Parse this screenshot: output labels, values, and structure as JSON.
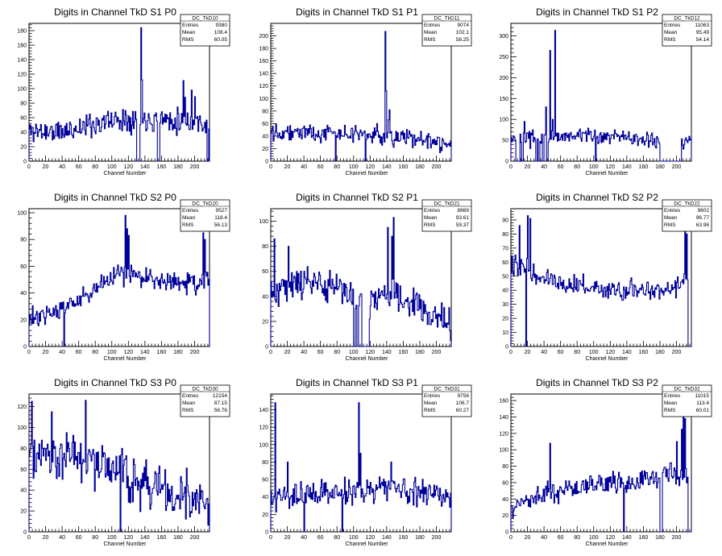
{
  "chart_data": [
    {
      "type": "histogram",
      "title": "Digits in Channel TkD S1 P0",
      "xlabel": "Channel Number",
      "xlim": [
        0,
        218
      ],
      "ylim": [
        0,
        190
      ],
      "xticks": [
        0,
        20,
        40,
        60,
        80,
        100,
        120,
        140,
        160,
        180,
        200
      ],
      "yticks": [
        0,
        20,
        40,
        60,
        80,
        100,
        120,
        140,
        160,
        180
      ],
      "stats": {
        "name": "DC_TkD10",
        "entries": "9380",
        "mean": "108.4",
        "rms": "60.05"
      },
      "spikes": [
        [
          135,
          184
        ],
        [
          136,
          112
        ],
        [
          186,
          111
        ],
        [
          188,
          88
        ],
        [
          196,
          98
        ],
        [
          200,
          89
        ]
      ],
      "zero_bins": [
        130,
        131,
        132,
        133,
        155,
        156,
        157,
        215,
        216
      ],
      "profile": [
        [
          0,
          42
        ],
        [
          40,
          40
        ],
        [
          80,
          52
        ],
        [
          120,
          60
        ],
        [
          160,
          58
        ],
        [
          200,
          55
        ],
        [
          218,
          50
        ]
      ],
      "noise": 12,
      "seed": 11
    },
    {
      "type": "histogram",
      "title": "Digits in Channel TkD S1 P1",
      "xlabel": "Channel Number",
      "xlim": [
        0,
        218
      ],
      "ylim": [
        0,
        220
      ],
      "xticks": [
        0,
        20,
        40,
        60,
        80,
        100,
        120,
        140,
        160,
        180,
        200
      ],
      "yticks": [
        0,
        20,
        40,
        60,
        80,
        100,
        120,
        140,
        160,
        180,
        200
      ],
      "stats": {
        "name": "DC_TkD11",
        "entries": "9074",
        "mean": "102.1",
        "rms": "58.25"
      },
      "spikes": [
        [
          138,
          207
        ],
        [
          139,
          112
        ],
        [
          143,
          82
        ],
        [
          142,
          66
        ]
      ],
      "zero_bins": [
        78,
        114
      ],
      "profile": [
        [
          0,
          50
        ],
        [
          40,
          46
        ],
        [
          80,
          44
        ],
        [
          120,
          42
        ],
        [
          160,
          38
        ],
        [
          200,
          30
        ],
        [
          218,
          22
        ]
      ],
      "noise": 10,
      "seed": 22
    },
    {
      "type": "histogram",
      "title": "Digits in Channel TkD S1 P2",
      "xlabel": "Channel Number",
      "xlim": [
        0,
        218
      ],
      "ylim": [
        0,
        330
      ],
      "xticks": [
        0,
        20,
        40,
        60,
        80,
        100,
        120,
        140,
        160,
        180,
        200
      ],
      "yticks": [
        0,
        50,
        100,
        150,
        200,
        250,
        300
      ],
      "stats": {
        "name": "DC_TkD12",
        "entries": "11063",
        "mean": "95.49",
        "rms": "54.14"
      },
      "spikes": [
        [
          47,
          265
        ],
        [
          53,
          313
        ],
        [
          50,
          100
        ],
        [
          42,
          130
        ],
        [
          26,
          75
        ],
        [
          16,
          95
        ]
      ],
      "zero_bins": [
        6,
        7,
        8,
        9,
        10,
        13,
        14,
        30,
        31,
        33,
        34,
        38,
        39,
        43,
        44,
        102,
        180,
        181,
        182,
        183,
        184,
        185,
        186,
        187,
        188,
        189,
        190,
        191,
        192,
        193,
        194,
        195,
        196,
        197,
        198,
        199,
        200,
        201,
        202,
        203,
        204,
        205
      ],
      "profile": [
        [
          0,
          50
        ],
        [
          40,
          55
        ],
        [
          80,
          62
        ],
        [
          120,
          58
        ],
        [
          160,
          50
        ],
        [
          200,
          40
        ],
        [
          218,
          50
        ]
      ],
      "noise": 12,
      "seed": 33
    },
    {
      "type": "histogram",
      "title": "Digits in Channel TkD S2 P0",
      "xlabel": "Channel Number",
      "xlim": [
        0,
        218
      ],
      "ylim": [
        0,
        103
      ],
      "xticks": [
        0,
        20,
        40,
        60,
        80,
        100,
        120,
        140,
        160,
        180,
        200
      ],
      "yticks": [
        0,
        20,
        40,
        60,
        80,
        100
      ],
      "stats": {
        "name": "DC_TkD20",
        "entries": "9527",
        "mean": "118.4",
        "rms": "56.13"
      },
      "spikes": [
        [
          116,
          98
        ],
        [
          118,
          88
        ],
        [
          120,
          83
        ],
        [
          210,
          85
        ],
        [
          212,
          80
        ]
      ],
      "zero_bins": [
        42
      ],
      "profile": [
        [
          0,
          20
        ],
        [
          40,
          28
        ],
        [
          80,
          42
        ],
        [
          110,
          55
        ],
        [
          140,
          52
        ],
        [
          180,
          48
        ],
        [
          218,
          50
        ]
      ],
      "noise": 6,
      "seed": 44
    },
    {
      "type": "histogram",
      "title": "Digits in Channel TkD S2 P1",
      "xlabel": "Channel Number",
      "xlim": [
        0,
        218
      ],
      "ylim": [
        0,
        110
      ],
      "xticks": [
        0,
        20,
        40,
        60,
        80,
        100,
        120,
        140,
        160,
        180,
        200
      ],
      "yticks": [
        0,
        20,
        40,
        60,
        80,
        100
      ],
      "stats": {
        "name": "DC_TkD21",
        "entries": "8869",
        "mean": "93.61",
        "rms": "59.37"
      },
      "spikes": [
        [
          148,
          103
        ],
        [
          146,
          88
        ],
        [
          141,
          95
        ],
        [
          4,
          86
        ],
        [
          21,
          80
        ]
      ],
      "zero_bins": [
        100,
        101,
        104,
        105,
        110,
        111,
        112,
        113,
        114,
        115,
        116,
        117,
        118
      ],
      "profile": [
        [
          0,
          45
        ],
        [
          40,
          52
        ],
        [
          80,
          48
        ],
        [
          100,
          40
        ],
        [
          120,
          38
        ],
        [
          150,
          42
        ],
        [
          180,
          30
        ],
        [
          218,
          18
        ]
      ],
      "noise": 9,
      "seed": 55
    },
    {
      "type": "histogram",
      "title": "Digits in Channel TkD S2 P2",
      "xlabel": "Channel Number",
      "xlim": [
        0,
        218
      ],
      "ylim": [
        0,
        98
      ],
      "xticks": [
        0,
        20,
        40,
        60,
        80,
        100,
        120,
        140,
        160,
        180,
        200
      ],
      "yticks": [
        0,
        10,
        20,
        30,
        40,
        50,
        60,
        70,
        80,
        90
      ],
      "stats": {
        "name": "DC_TkD22",
        "entries": "9602",
        "mean": "96.77",
        "rms": "63.96"
      },
      "spikes": [
        [
          10,
          86
        ],
        [
          20,
          93
        ],
        [
          23,
          91
        ],
        [
          5,
          65
        ],
        [
          210,
          85
        ],
        [
          212,
          80
        ]
      ],
      "zero_bins": [
        18,
        214,
        215,
        216,
        217
      ],
      "profile": [
        [
          0,
          60
        ],
        [
          30,
          52
        ],
        [
          60,
          45
        ],
        [
          100,
          42
        ],
        [
          140,
          40
        ],
        [
          180,
          38
        ],
        [
          205,
          45
        ],
        [
          218,
          50
        ]
      ],
      "noise": 5,
      "seed": 66
    },
    {
      "type": "histogram",
      "title": "Digits in Channel TkD S3 P0",
      "xlabel": "Channel Number",
      "xlim": [
        0,
        218
      ],
      "ylim": [
        0,
        132
      ],
      "xticks": [
        0,
        20,
        40,
        60,
        80,
        100,
        120,
        140,
        160,
        180,
        200
      ],
      "yticks": [
        0,
        20,
        40,
        60,
        80,
        100,
        120
      ],
      "stats": {
        "name": "DC_TkD30",
        "entries": "12154",
        "mean": "87.15",
        "rms": "56.76"
      },
      "spikes": [
        [
          3,
          125
        ],
        [
          27,
          115
        ],
        [
          68,
          126
        ],
        [
          45,
          95
        ]
      ],
      "zero_bins": [
        110
      ],
      "profile": [
        [
          0,
          80
        ],
        [
          30,
          75
        ],
        [
          60,
          70
        ],
        [
          100,
          60
        ],
        [
          140,
          45
        ],
        [
          180,
          35
        ],
        [
          218,
          25
        ]
      ],
      "noise": 16,
      "seed": 77
    },
    {
      "type": "histogram",
      "title": "Digits in Channel TkD S3 P1",
      "xlabel": "Channel Number",
      "xlim": [
        0,
        218
      ],
      "ylim": [
        0,
        158
      ],
      "xticks": [
        0,
        20,
        40,
        60,
        80,
        100,
        120,
        140,
        160,
        180,
        200
      ],
      "yticks": [
        0,
        20,
        40,
        60,
        80,
        100,
        120,
        140
      ],
      "stats": {
        "name": "DC_TkD31",
        "entries": "9756",
        "mean": "106.7",
        "rms": "60.27"
      },
      "spikes": [
        [
          5,
          148
        ],
        [
          106,
          148
        ],
        [
          108,
          90
        ],
        [
          20,
          80
        ],
        [
          145,
          80
        ]
      ],
      "zero_bins": [
        40,
        86
      ],
      "profile": [
        [
          0,
          40
        ],
        [
          40,
          42
        ],
        [
          80,
          45
        ],
        [
          120,
          50
        ],
        [
          160,
          48
        ],
        [
          200,
          45
        ],
        [
          218,
          35
        ]
      ],
      "noise": 11,
      "seed": 88
    },
    {
      "type": "histogram",
      "title": "Digits in Channel TkD S3 P2",
      "xlabel": "Channel Number",
      "xlim": [
        0,
        218
      ],
      "ylim": [
        0,
        168
      ],
      "xticks": [
        0,
        20,
        40,
        60,
        80,
        100,
        120,
        140,
        160,
        180,
        200
      ],
      "yticks": [
        0,
        20,
        40,
        60,
        80,
        100,
        120,
        140,
        160
      ],
      "stats": {
        "name": "DC_TkD32",
        "entries": "11015",
        "mean": "113.4",
        "rms": "60.01"
      },
      "spikes": [
        [
          208,
          145
        ],
        [
          206,
          125
        ],
        [
          47,
          108
        ],
        [
          200,
          110
        ],
        [
          210,
          138
        ]
      ],
      "zero_bins": [
        136,
        180,
        181,
        182,
        214,
        215,
        216,
        217
      ],
      "profile": [
        [
          0,
          30
        ],
        [
          40,
          45
        ],
        [
          80,
          55
        ],
        [
          120,
          58
        ],
        [
          160,
          62
        ],
        [
          200,
          75
        ],
        [
          218,
          60
        ]
      ],
      "noise": 10,
      "seed": 99
    }
  ]
}
